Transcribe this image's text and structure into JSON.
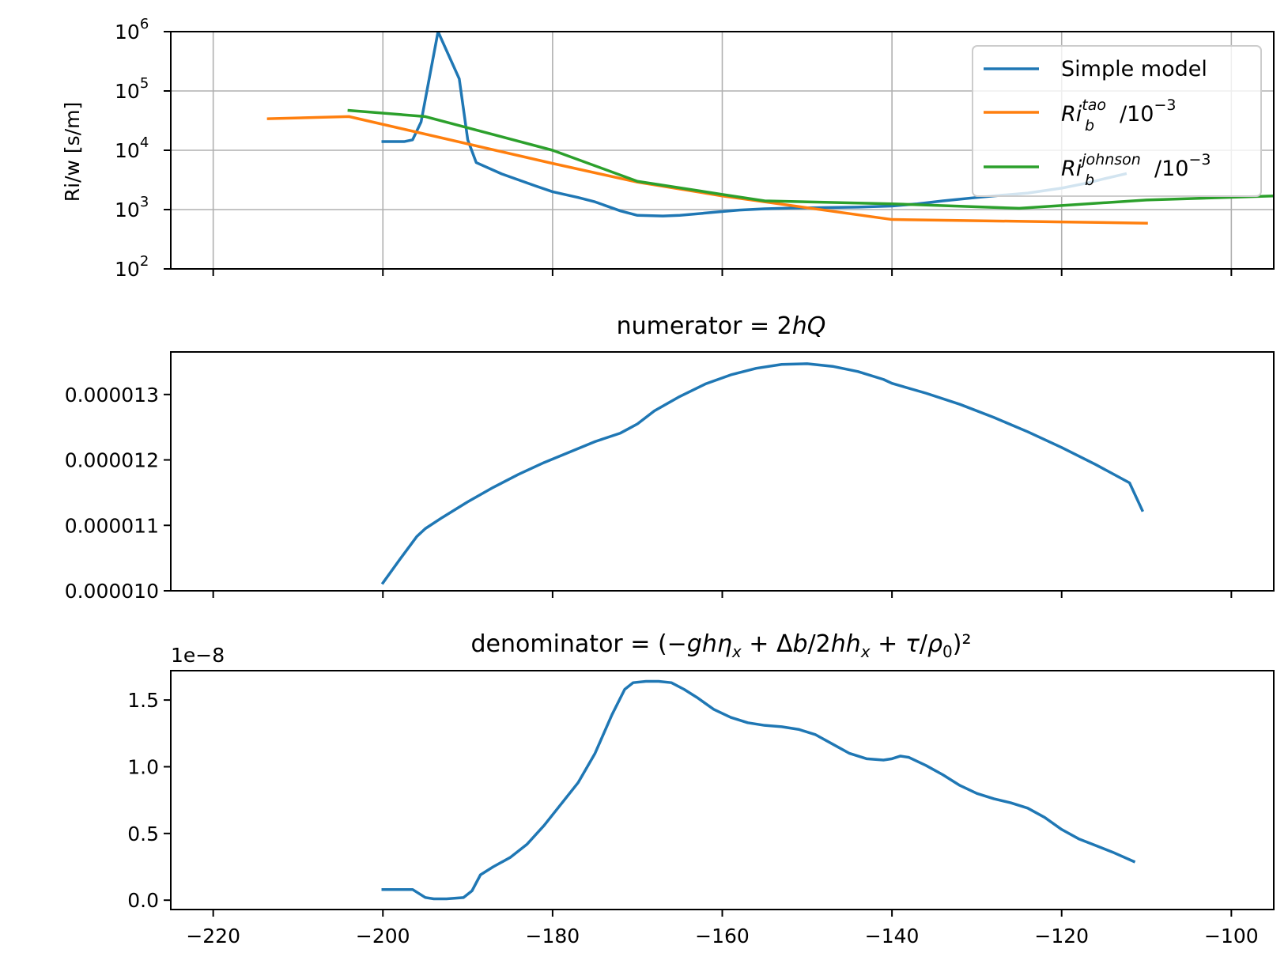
{
  "colors": {
    "simple": "#1f77b4",
    "tao": "#ff7f0e",
    "johnson": "#2ca02c",
    "grid": "#b0b0b0",
    "axis": "#000000"
  },
  "chart_data": [
    {
      "type": "line",
      "title": "",
      "xlabel": "",
      "ylabel": "Ri/w [s/m]",
      "yscale": "log",
      "xlim": [
        -225,
        -95
      ],
      "ylim": [
        100,
        1000000
      ],
      "grid": true,
      "legend_position": "top-right",
      "x_ticks": [
        -220,
        -200,
        -180,
        -160,
        -140,
        -120,
        -100
      ],
      "y_ticks": [
        {
          "value": 100,
          "base": "10",
          "exp": "2"
        },
        {
          "value": 1000,
          "base": "10",
          "exp": "3"
        },
        {
          "value": 10000,
          "base": "10",
          "exp": "4"
        },
        {
          "value": 100000,
          "base": "10",
          "exp": "5"
        },
        {
          "value": 1000000,
          "base": "10",
          "exp": "6"
        }
      ],
      "series": [
        {
          "name": "Simple model",
          "color_key": "simple",
          "x": [
            -200,
            -197.5,
            -196.5,
            -195.5,
            -193.5,
            -191,
            -190,
            -189,
            -186,
            -182,
            -180,
            -177,
            -175,
            -172,
            -170,
            -167,
            -165,
            -161,
            -158,
            -155,
            -152,
            -148,
            -144,
            -140,
            -137,
            -134,
            -130,
            -127,
            -124,
            -120,
            -117,
            -115,
            -112.5
          ],
          "y": [
            14000,
            14000,
            15000,
            30000,
            1000000,
            160000,
            15000,
            6200,
            4000,
            2500,
            2000,
            1600,
            1350,
            950,
            800,
            780,
            800,
            900,
            980,
            1030,
            1060,
            1080,
            1100,
            1150,
            1250,
            1400,
            1600,
            1750,
            1900,
            2300,
            2800,
            3300,
            4000
          ]
        },
        {
          "name": "Ri_b^tao/10^-3",
          "color_key": "tao",
          "legend_parts": {
            "base": "Ri",
            "sub": "b",
            "sup": "tao",
            "suffix": "/10",
            "suffix_sup": "−3"
          },
          "x": [
            -213.5,
            -204,
            -180,
            -170,
            -160,
            -140,
            -120,
            -110
          ],
          "y": [
            34000,
            37000,
            6000,
            2900,
            1700,
            680,
            620,
            590
          ]
        },
        {
          "name": "Ri_b^johnson/10^-3",
          "color_key": "johnson",
          "legend_parts": {
            "base": "Ri",
            "sub": "b",
            "sup": "johnson",
            "suffix": "/10",
            "suffix_sup": "−3"
          },
          "x": [
            -204,
            -195,
            -180,
            -170,
            -160,
            -155,
            -140,
            -125,
            -110,
            -95
          ],
          "y": [
            47000,
            37000,
            10000,
            3000,
            1800,
            1400,
            1250,
            1050,
            1450,
            1700
          ]
        }
      ]
    },
    {
      "type": "line",
      "title": "numerator = 2hQ",
      "title_parts": {
        "prefix": "numerator = 2",
        "italic": "hQ"
      },
      "xlabel": "",
      "ylabel": "",
      "xlim": [
        -225,
        -95
      ],
      "ylim": [
        1e-05,
        1.365e-05
      ],
      "grid": false,
      "x_ticks": [
        -220,
        -200,
        -180,
        -160,
        -140,
        -120,
        -100
      ],
      "y_ticks": [
        {
          "value": 1e-05,
          "label": "0.000010"
        },
        {
          "value": 1.1e-05,
          "label": "0.000011"
        },
        {
          "value": 1.2e-05,
          "label": "0.000012"
        },
        {
          "value": 1.3e-05,
          "label": "0.000013"
        }
      ],
      "series": [
        {
          "color_key": "simple",
          "x": [
            -200,
            -198,
            -196,
            -195,
            -193,
            -190,
            -187,
            -184,
            -181,
            -178,
            -175,
            -172,
            -171,
            -170,
            -168,
            -165,
            -162,
            -159,
            -156,
            -153,
            -150,
            -147,
            -144,
            -141,
            -140,
            -136,
            -132,
            -128,
            -124,
            -120,
            -116,
            -112,
            -110.5
          ],
          "y": [
            1.012e-05,
            1.048e-05,
            1.083e-05,
            1.095e-05,
            1.112e-05,
            1.136e-05,
            1.158e-05,
            1.178e-05,
            1.196e-05,
            1.212e-05,
            1.228e-05,
            1.241e-05,
            1.248e-05,
            1.255e-05,
            1.275e-05,
            1.297e-05,
            1.316e-05,
            1.33e-05,
            1.34e-05,
            1.346e-05,
            1.347e-05,
            1.343e-05,
            1.335e-05,
            1.323e-05,
            1.317e-05,
            1.302e-05,
            1.285e-05,
            1.265e-05,
            1.243e-05,
            1.219e-05,
            1.193e-05,
            1.165e-05,
            1.123e-05
          ]
        }
      ]
    },
    {
      "type": "line",
      "title": "denominator = (−ghη_x + Δb/2hh_x + τ/ρ_0)²",
      "xlabel": "",
      "ylabel": "",
      "offset_text": "1e−8",
      "xlim": [
        -225,
        -95
      ],
      "ylim": [
        -0.07,
        1.72
      ],
      "y_multiplier": 1e-08,
      "grid": false,
      "x_ticks": [
        -220,
        -200,
        -180,
        -160,
        -140,
        -120,
        -100
      ],
      "x_tick_labels": [
        "−220",
        "−200",
        "−180",
        "−160",
        "−140",
        "−120",
        "−100"
      ],
      "y_ticks": [
        {
          "value": 0.0,
          "label": "0.0"
        },
        {
          "value": 0.5,
          "label": "0.5"
        },
        {
          "value": 1.0,
          "label": "1.0"
        },
        {
          "value": 1.5,
          "label": "1.5"
        }
      ],
      "series": [
        {
          "color_key": "simple",
          "x": [
            -200,
            -198,
            -196.5,
            -195,
            -194,
            -192.5,
            -190.5,
            -189.5,
            -188.5,
            -187,
            -185,
            -183,
            -181,
            -179,
            -177,
            -175,
            -173,
            -171.5,
            -170.5,
            -169,
            -167.5,
            -166,
            -164.5,
            -163,
            -161,
            -159,
            -157,
            -155,
            -153,
            -151,
            -149,
            -147,
            -145,
            -143,
            -141,
            -140,
            -139,
            -138,
            -136,
            -134,
            -132,
            -130,
            -128,
            -126,
            -124,
            -122,
            -120,
            -118,
            -116,
            -114,
            -111.5
          ],
          "y": [
            0.08,
            0.08,
            0.08,
            0.02,
            0.01,
            0.01,
            0.02,
            0.07,
            0.19,
            0.25,
            0.32,
            0.42,
            0.56,
            0.72,
            0.88,
            1.1,
            1.39,
            1.58,
            1.63,
            1.64,
            1.64,
            1.63,
            1.58,
            1.52,
            1.43,
            1.37,
            1.33,
            1.31,
            1.3,
            1.28,
            1.24,
            1.17,
            1.1,
            1.06,
            1.05,
            1.06,
            1.08,
            1.07,
            1.01,
            0.94,
            0.86,
            0.8,
            0.76,
            0.73,
            0.69,
            0.62,
            0.53,
            0.46,
            0.41,
            0.36,
            0.29
          ]
        }
      ]
    }
  ]
}
